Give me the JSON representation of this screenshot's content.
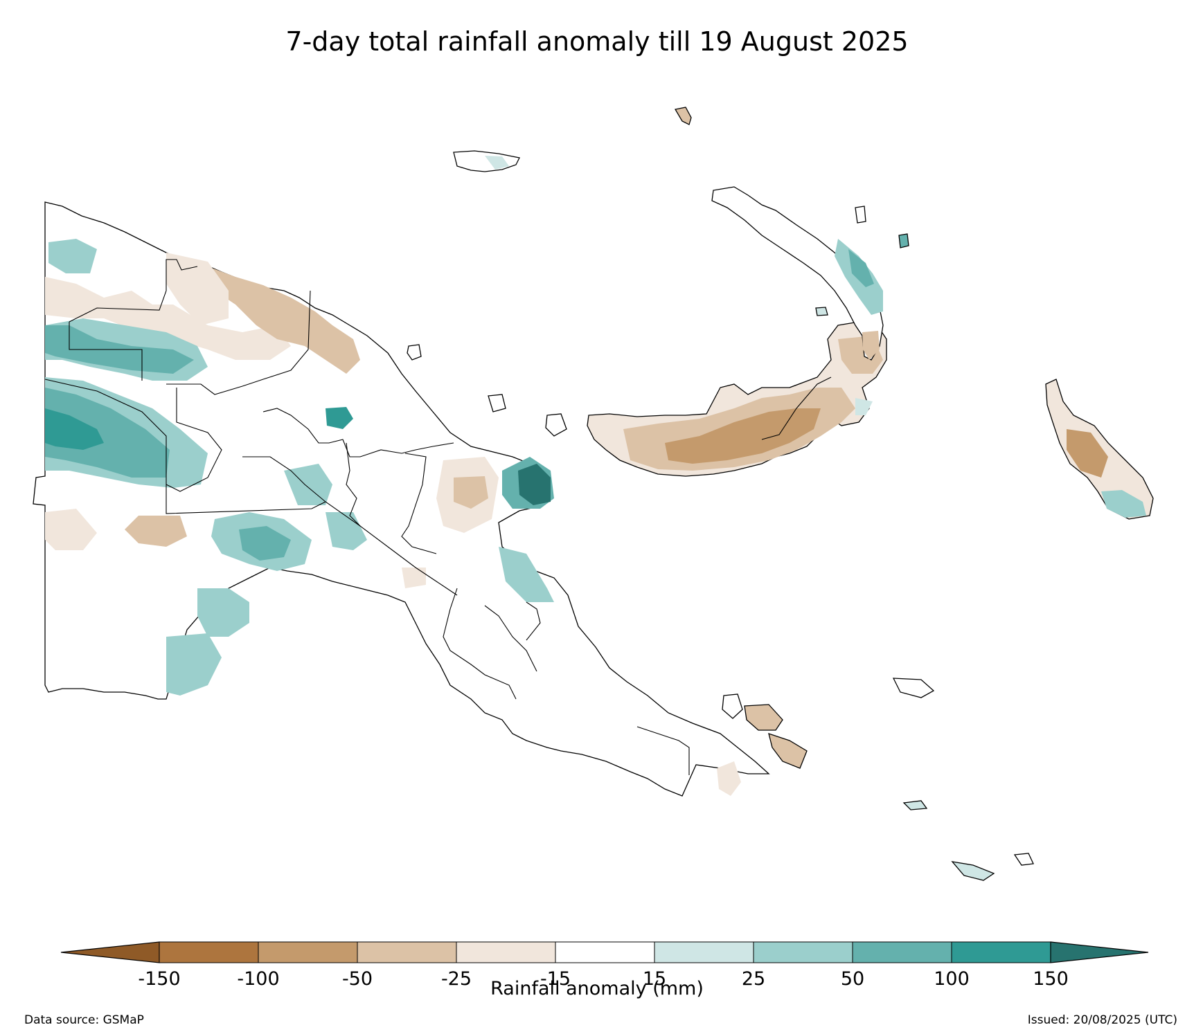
{
  "title": "7-day total rainfall anomaly till 19 August 2025",
  "colorbar": {
    "label": "Rainfall anomaly (mm)",
    "ticks": [
      "-150",
      "-100",
      "-50",
      "-25",
      "-15",
      "15",
      "25",
      "50",
      "100",
      "150"
    ],
    "bins": [
      {
        "range": "< -150",
        "color": "#8f5a27"
      },
      {
        "range": "-150 to -100",
        "color": "#ad753e"
      },
      {
        "range": "-100 to -50",
        "color": "#c49a6c"
      },
      {
        "range": "-50 to -25",
        "color": "#dcc2a6"
      },
      {
        "range": "-25 to -15",
        "color": "#f1e6dc"
      },
      {
        "range": "-15 to 15",
        "color": "#ffffff"
      },
      {
        "range": "15 to 25",
        "color": "#cfe6e5"
      },
      {
        "range": "25 to 50",
        "color": "#9bcfcc"
      },
      {
        "range": "50 to 100",
        "color": "#64b1ad"
      },
      {
        "range": "100 to 150",
        "color": "#2f9a94"
      },
      {
        "range": "> 150",
        "color": "#27736f"
      }
    ]
  },
  "footer": {
    "data_source": "Data source: GSMaP",
    "issued": "Issued: 20/08/2025 (UTC)"
  }
}
